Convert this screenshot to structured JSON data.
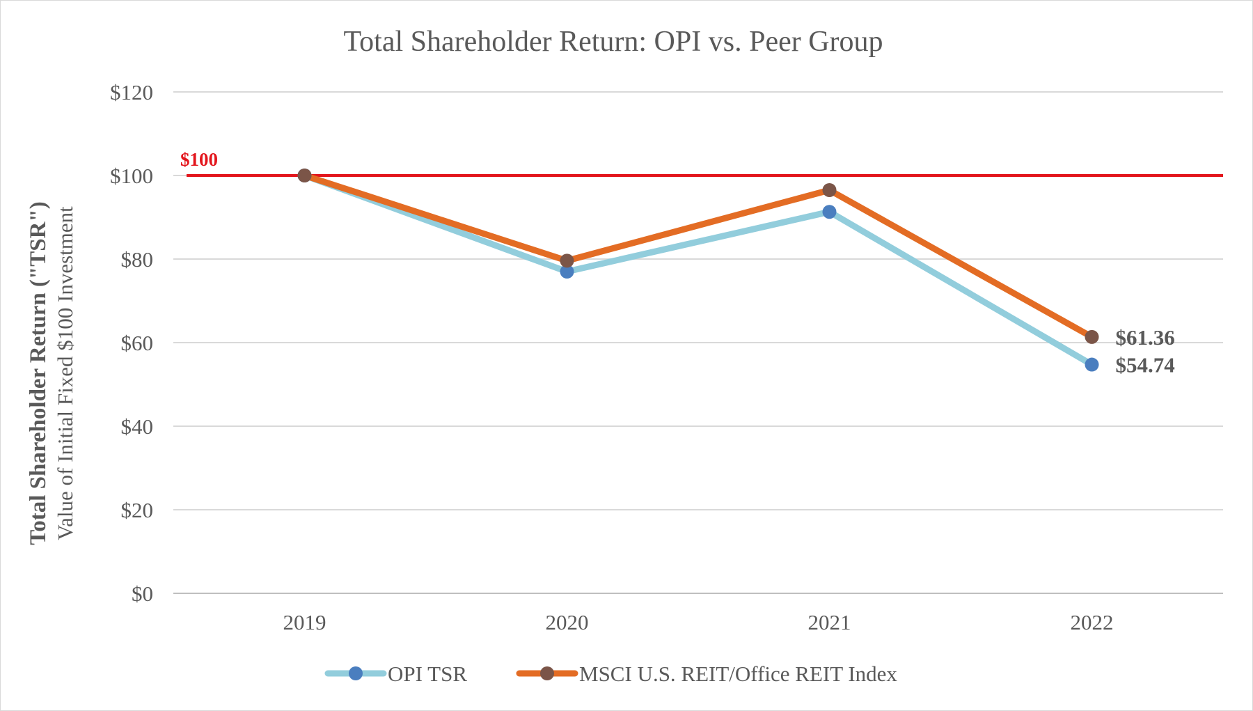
{
  "chart_data": {
    "type": "line",
    "title": "Total Shareholder Return: OPI vs. Peer Group",
    "ylabel_main": "Total Shareholder Return (\"TSR\")",
    "ylabel_sub": "Value of Initial Fixed $100 Investment",
    "xlabel": "",
    "categories": [
      "2019",
      "2020",
      "2021",
      "2022"
    ],
    "ylim": [
      0,
      120
    ],
    "yticks": [
      0,
      20,
      40,
      60,
      80,
      100,
      120
    ],
    "ytick_labels": [
      "$0",
      "$20",
      "$40",
      "$60",
      "$80",
      "$100",
      "$120"
    ],
    "grid": true,
    "reference_line": {
      "value": 100,
      "label": "$100",
      "color": "#e3151c"
    },
    "series": [
      {
        "name": "OPI TSR",
        "values": [
          100,
          77,
          91.3,
          54.74
        ],
        "line_color": "#92cddc",
        "marker_color": "#4a7ebf",
        "end_label": "$54.74"
      },
      {
        "name": "MSCI U.S. REIT/Office REIT Index",
        "values": [
          100,
          79.6,
          96.5,
          61.36
        ],
        "line_color": "#e36c24",
        "marker_color": "#7b5548",
        "end_label": "$61.36"
      }
    ],
    "legend_position": "bottom-center"
  }
}
